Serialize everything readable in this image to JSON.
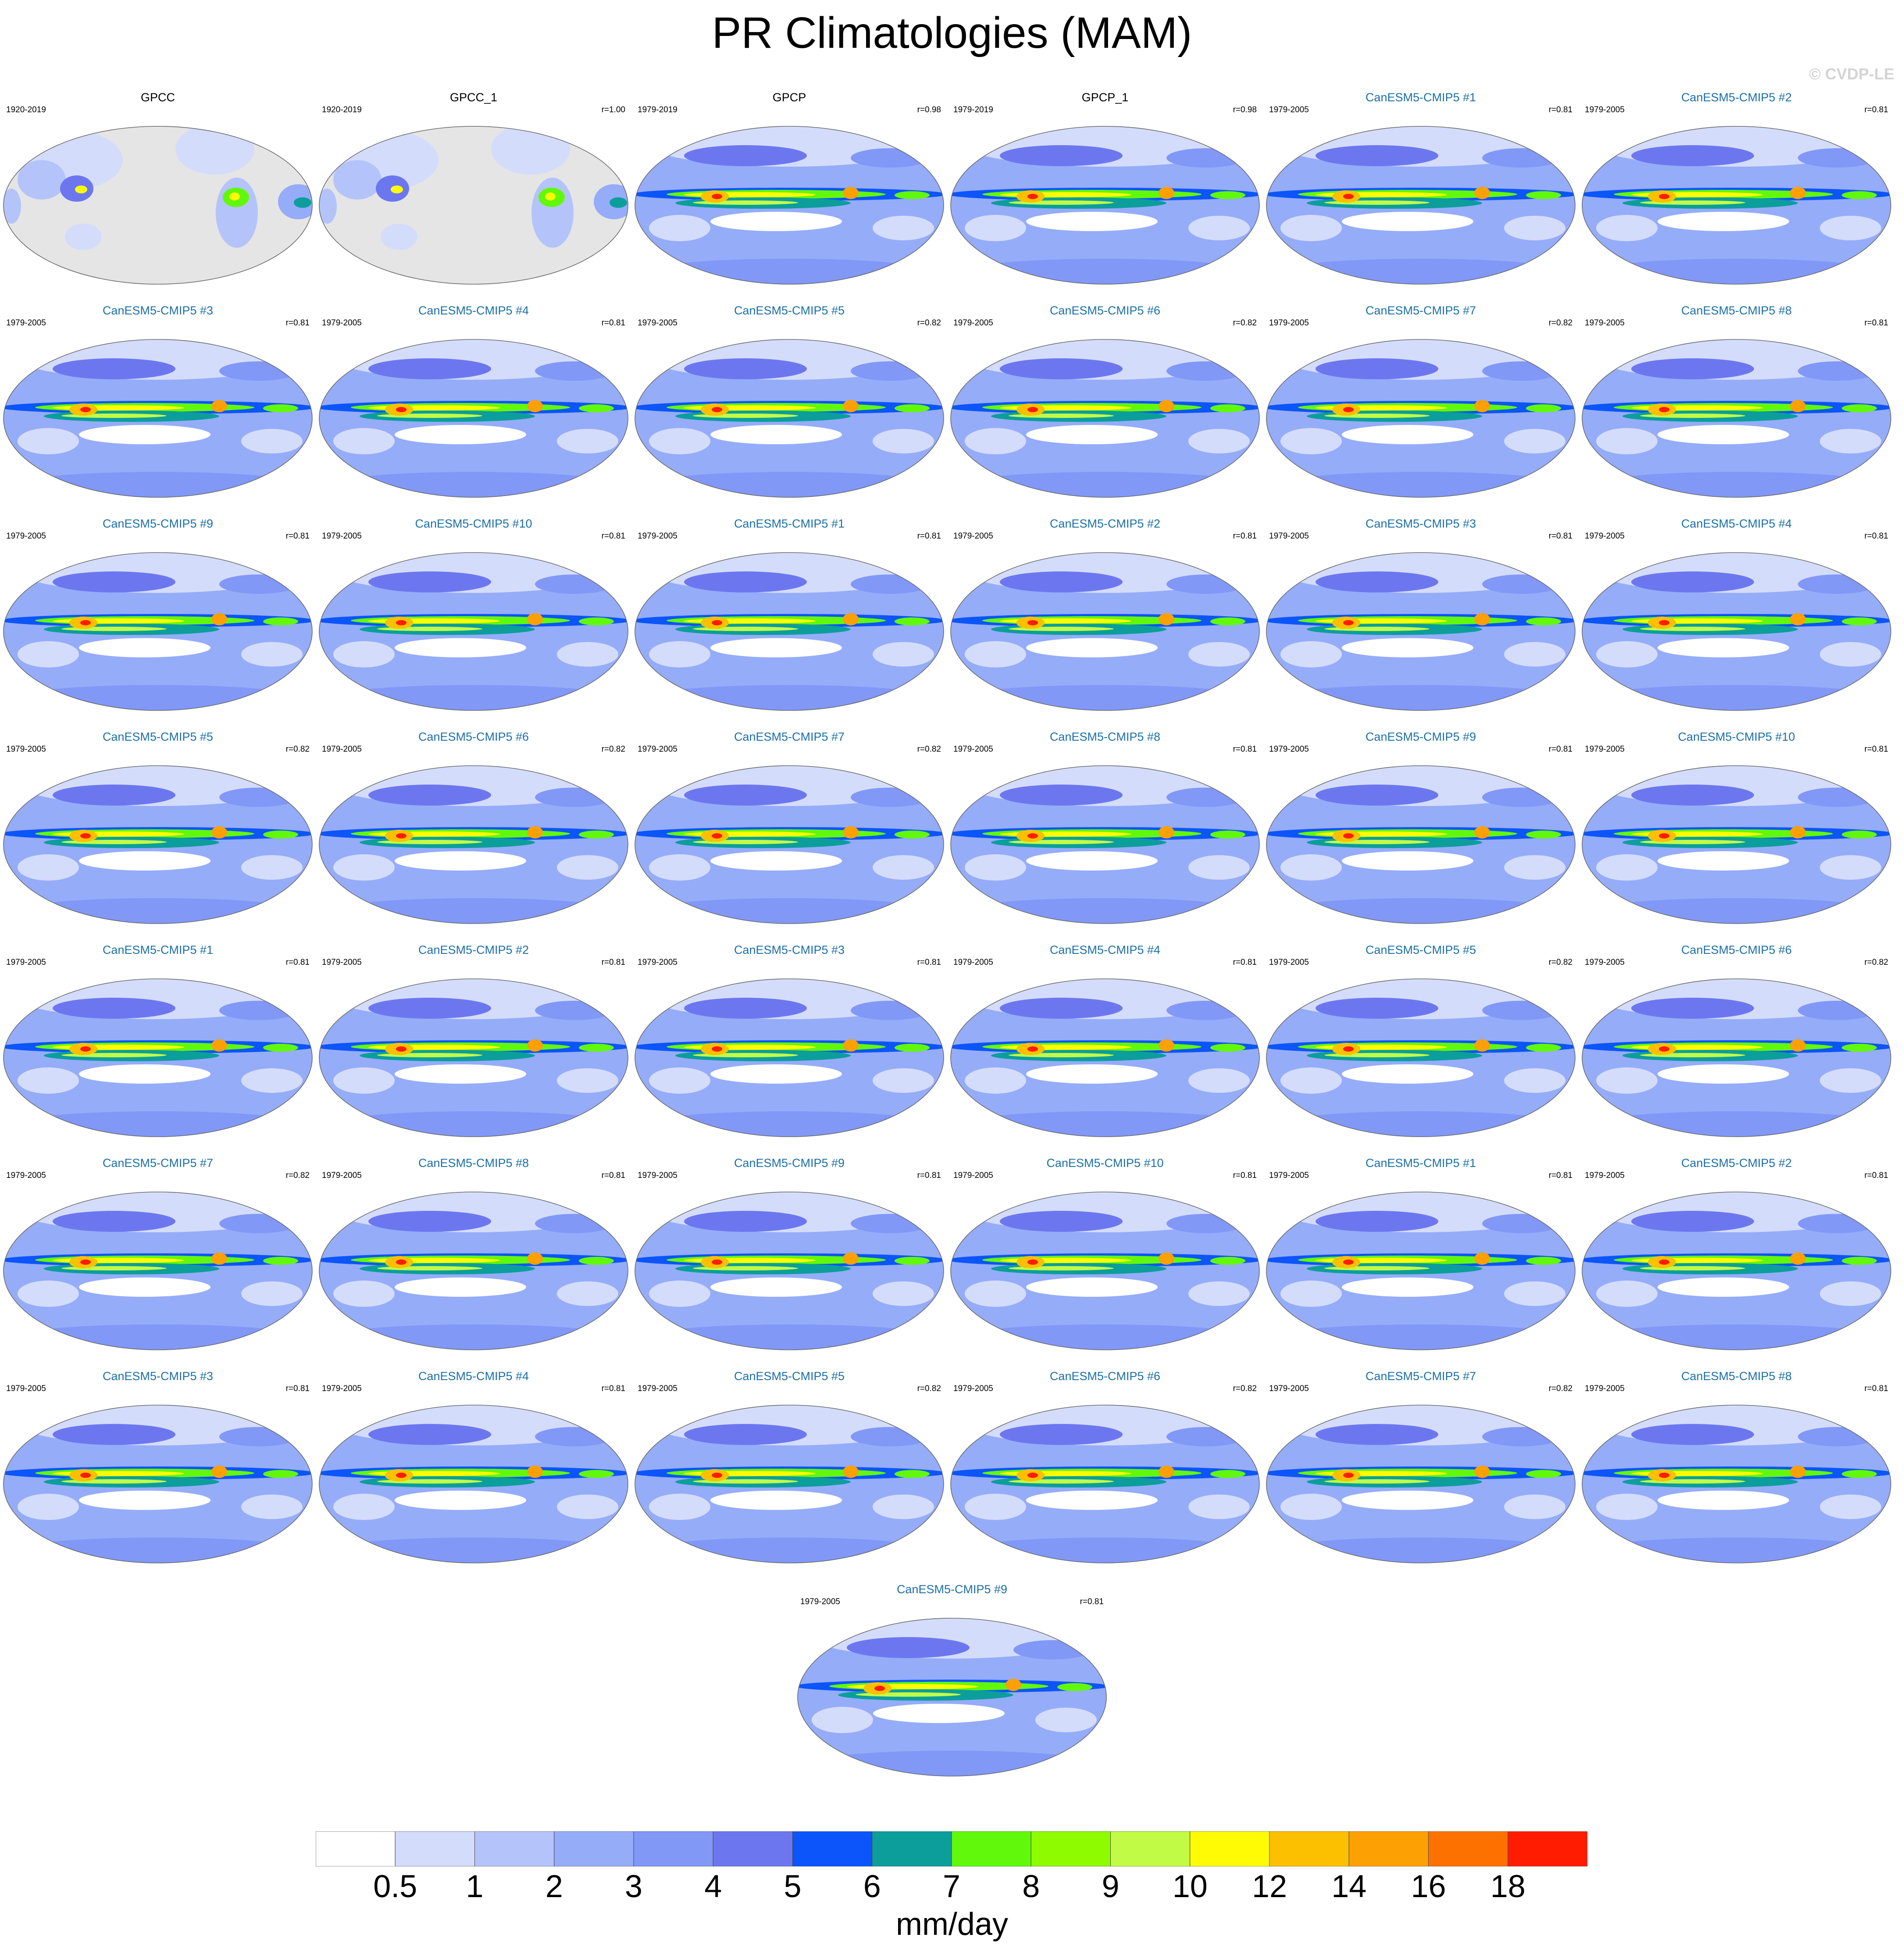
{
  "chart_data": {
    "type": "heatmap",
    "title": "PR Climatologies (MAM)",
    "watermark": "© CVDP-LE",
    "projection": "robinson",
    "units_label": "mm/day",
    "colorbar": {
      "levels": [
        "0.5",
        "1",
        "2",
        "3",
        "4",
        "5",
        "6",
        "7",
        "8",
        "9",
        "10",
        "12",
        "14",
        "16",
        "18"
      ],
      "colors": [
        "#ffffff",
        "#d4dcfb",
        "#b4c4fa",
        "#95acf9",
        "#8198f7",
        "#6c77ef",
        "#0b55fa",
        "#0c9e9b",
        "#62f80b",
        "#8ffb00",
        "#c2fb46",
        "#fffb05",
        "#fcc000",
        "#fda004",
        "#fd7100",
        "#ff1c00"
      ]
    },
    "panels": [
      {
        "title": "GPCC",
        "period": "1920-2019",
        "r": "",
        "source": "obs",
        "land_only": true
      },
      {
        "title": "GPCC_1",
        "period": "1920-2019",
        "r": "r=1.00",
        "source": "obs",
        "land_only": true
      },
      {
        "title": "GPCP",
        "period": "1979-2019",
        "r": "r=0.98",
        "source": "obs",
        "land_only": false
      },
      {
        "title": "GPCP_1",
        "period": "1979-2019",
        "r": "r=0.98",
        "source": "obs",
        "land_only": false
      },
      {
        "title": "CanESM5-CMIP5 #1",
        "period": "1979-2005",
        "r": "r=0.81",
        "source": "model"
      },
      {
        "title": "CanESM5-CMIP5 #2",
        "period": "1979-2005",
        "r": "r=0.81",
        "source": "model"
      },
      {
        "title": "CanESM5-CMIP5 #3",
        "period": "1979-2005",
        "r": "r=0.81",
        "source": "model"
      },
      {
        "title": "CanESM5-CMIP5 #4",
        "period": "1979-2005",
        "r": "r=0.81",
        "source": "model"
      },
      {
        "title": "CanESM5-CMIP5 #5",
        "period": "1979-2005",
        "r": "r=0.82",
        "source": "model"
      },
      {
        "title": "CanESM5-CMIP5 #6",
        "period": "1979-2005",
        "r": "r=0.82",
        "source": "model"
      },
      {
        "title": "CanESM5-CMIP5 #7",
        "period": "1979-2005",
        "r": "r=0.82",
        "source": "model"
      },
      {
        "title": "CanESM5-CMIP5 #8",
        "period": "1979-2005",
        "r": "r=0.81",
        "source": "model"
      },
      {
        "title": "CanESM5-CMIP5 #9",
        "period": "1979-2005",
        "r": "r=0.81",
        "source": "model"
      },
      {
        "title": "CanESM5-CMIP5 #10",
        "period": "1979-2005",
        "r": "r=0.81",
        "source": "model"
      },
      {
        "title": "CanESM5-CMIP5 #1",
        "period": "1979-2005",
        "r": "r=0.81",
        "source": "model"
      },
      {
        "title": "CanESM5-CMIP5 #2",
        "period": "1979-2005",
        "r": "r=0.81",
        "source": "model"
      },
      {
        "title": "CanESM5-CMIP5 #3",
        "period": "1979-2005",
        "r": "r=0.81",
        "source": "model"
      },
      {
        "title": "CanESM5-CMIP5 #4",
        "period": "1979-2005",
        "r": "r=0.81",
        "source": "model"
      },
      {
        "title": "CanESM5-CMIP5 #5",
        "period": "1979-2005",
        "r": "r=0.82",
        "source": "model"
      },
      {
        "title": "CanESM5-CMIP5 #6",
        "period": "1979-2005",
        "r": "r=0.82",
        "source": "model"
      },
      {
        "title": "CanESM5-CMIP5 #7",
        "period": "1979-2005",
        "r": "r=0.82",
        "source": "model"
      },
      {
        "title": "CanESM5-CMIP5 #8",
        "period": "1979-2005",
        "r": "r=0.81",
        "source": "model"
      },
      {
        "title": "CanESM5-CMIP5 #9",
        "period": "1979-2005",
        "r": "r=0.81",
        "source": "model"
      },
      {
        "title": "CanESM5-CMIP5 #10",
        "period": "1979-2005",
        "r": "r=0.81",
        "source": "model"
      },
      {
        "title": "CanESM5-CMIP5 #1",
        "period": "1979-2005",
        "r": "r=0.81",
        "source": "model"
      },
      {
        "title": "CanESM5-CMIP5 #2",
        "period": "1979-2005",
        "r": "r=0.81",
        "source": "model"
      },
      {
        "title": "CanESM5-CMIP5 #3",
        "period": "1979-2005",
        "r": "r=0.81",
        "source": "model"
      },
      {
        "title": "CanESM5-CMIP5 #4",
        "period": "1979-2005",
        "r": "r=0.81",
        "source": "model"
      },
      {
        "title": "CanESM5-CMIP5 #5",
        "period": "1979-2005",
        "r": "r=0.82",
        "source": "model"
      },
      {
        "title": "CanESM5-CMIP5 #6",
        "period": "1979-2005",
        "r": "r=0.82",
        "source": "model"
      },
      {
        "title": "CanESM5-CMIP5 #7",
        "period": "1979-2005",
        "r": "r=0.82",
        "source": "model"
      },
      {
        "title": "CanESM5-CMIP5 #8",
        "period": "1979-2005",
        "r": "r=0.81",
        "source": "model"
      },
      {
        "title": "CanESM5-CMIP5 #9",
        "period": "1979-2005",
        "r": "r=0.81",
        "source": "model"
      },
      {
        "title": "CanESM5-CMIP5 #10",
        "period": "1979-2005",
        "r": "r=0.81",
        "source": "model"
      },
      {
        "title": "CanESM5-CMIP5 #1",
        "period": "1979-2005",
        "r": "r=0.81",
        "source": "model"
      },
      {
        "title": "CanESM5-CMIP5 #2",
        "period": "1979-2005",
        "r": "r=0.81",
        "source": "model"
      },
      {
        "title": "CanESM5-CMIP5 #3",
        "period": "1979-2005",
        "r": "r=0.81",
        "source": "model"
      },
      {
        "title": "CanESM5-CMIP5 #4",
        "period": "1979-2005",
        "r": "r=0.81",
        "source": "model"
      },
      {
        "title": "CanESM5-CMIP5 #5",
        "period": "1979-2005",
        "r": "r=0.82",
        "source": "model"
      },
      {
        "title": "CanESM5-CMIP5 #6",
        "period": "1979-2005",
        "r": "r=0.82",
        "source": "model"
      },
      {
        "title": "CanESM5-CMIP5 #7",
        "period": "1979-2005",
        "r": "r=0.82",
        "source": "model"
      },
      {
        "title": "CanESM5-CMIP5 #8",
        "period": "1979-2005",
        "r": "r=0.81",
        "source": "model"
      },
      {
        "title": "CanESM5-CMIP5 #9",
        "period": "1979-2005",
        "r": "r=0.81",
        "source": "model"
      }
    ]
  }
}
